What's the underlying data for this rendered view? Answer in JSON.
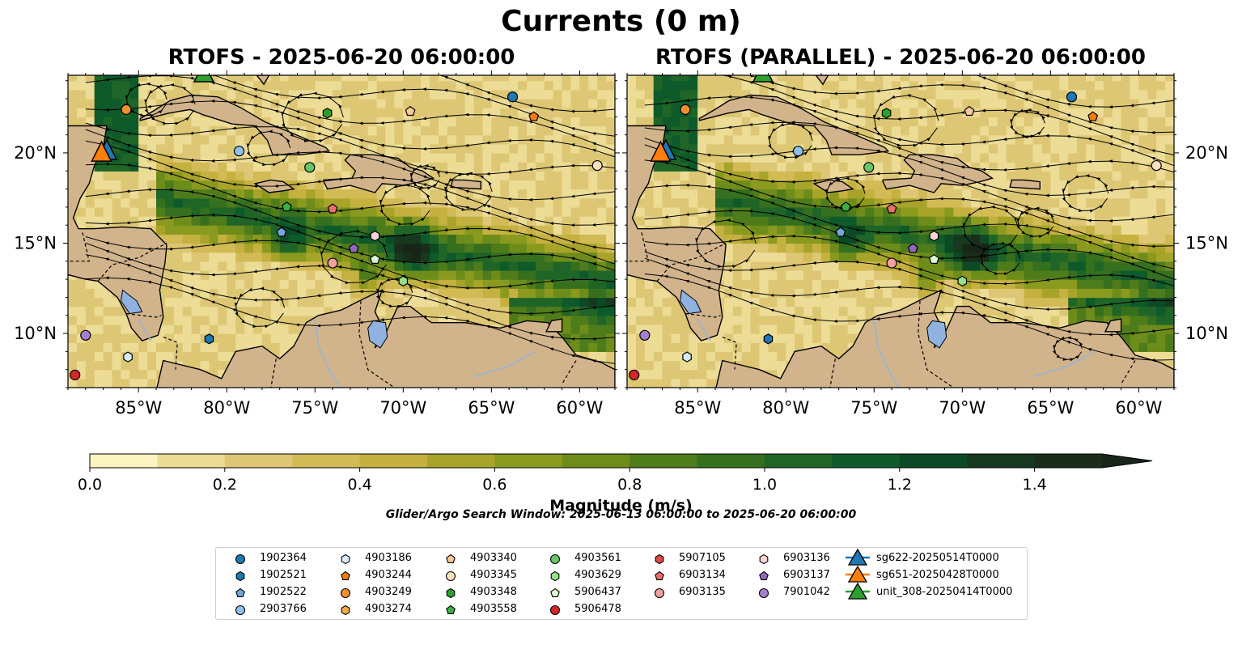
{
  "figure": {
    "suptitle": "Currents (0 m)",
    "panels": [
      {
        "title": "RTOFS - 2025-06-20 06:00:00"
      },
      {
        "title": "RTOFS (PARALLEL) - 2025-06-20 06:00:00"
      }
    ],
    "lat_ticks": [
      "20°N",
      "15°N",
      "10°N"
    ],
    "lon_ticks": [
      "85°W",
      "80°W",
      "75°W",
      "70°W",
      "65°W",
      "60°W"
    ],
    "extent": {
      "lon": [
        -89.0,
        -58.0
      ],
      "lat": [
        7.0,
        24.3
      ]
    }
  },
  "colorbar": {
    "label": "Magnitude (m/s)",
    "range": [
      0.0,
      1.5
    ],
    "extend": "max",
    "ticks": [
      "0.0",
      "0.2",
      "0.4",
      "0.6",
      "0.8",
      "1.0",
      "1.2",
      "1.4"
    ],
    "colors": [
      "#fbf3c0",
      "#ecdc96",
      "#ddc774",
      "#d2ba55",
      "#c4b140",
      "#a8a42a",
      "#8a9a1e",
      "#6e8c1a",
      "#4f7c1b",
      "#36701f",
      "#1f6527",
      "#0e5a2a",
      "#0b4a25",
      "#17391f",
      "#1c2c1b",
      "#18261a"
    ]
  },
  "search_window": "Glider/Argo Search Window: 2025-06-13 06:00:00 to 2025-06-20 06:00:00",
  "legend": {
    "columns": [
      [
        {
          "label": "1902364",
          "marker": "circle",
          "color": "#1f77b4"
        },
        {
          "label": "1902521",
          "marker": "hexagon",
          "color": "#1f77b4"
        },
        {
          "label": "1902522",
          "marker": "pentagon",
          "color": "#6fa8dc"
        },
        {
          "label": "2903766",
          "marker": "circle",
          "color": "#8fc1ea"
        }
      ],
      [
        {
          "label": "4903186",
          "marker": "hexagon",
          "color": "#d6ecfa"
        },
        {
          "label": "4903244",
          "marker": "pentagon",
          "color": "#f07d10"
        },
        {
          "label": "4903249",
          "marker": "circle",
          "color": "#f28f2e"
        },
        {
          "label": "4903274",
          "marker": "hexagon",
          "color": "#f6a84c"
        }
      ],
      [
        {
          "label": "4903340",
          "marker": "pentagon",
          "color": "#f8c89a"
        },
        {
          "label": "4903345",
          "marker": "circle",
          "color": "#fde0c0"
        },
        {
          "label": "4903348",
          "marker": "hexagon",
          "color": "#2ca02c"
        },
        {
          "label": "4903558",
          "marker": "pentagon",
          "color": "#3cb043"
        }
      ],
      [
        {
          "label": "4903561",
          "marker": "circle",
          "color": "#66c766"
        },
        {
          "label": "4903629",
          "marker": "hexagon",
          "color": "#98df8a"
        },
        {
          "label": "5906437",
          "marker": "pentagon",
          "color": "#dcf7d0"
        },
        {
          "label": "5906478",
          "marker": "circle",
          "color": "#d62728"
        }
      ],
      [
        {
          "label": "5907105",
          "marker": "hexagon",
          "color": "#e04848"
        },
        {
          "label": "6903134",
          "marker": "pentagon",
          "color": "#ec6f6f"
        },
        {
          "label": "6903135",
          "marker": "circle",
          "color": "#f4a0a0"
        }
      ],
      [
        {
          "label": "6903136",
          "marker": "hexagon",
          "color": "#fad4d4"
        },
        {
          "label": "6903137",
          "marker": "pentagon",
          "color": "#9467bd"
        },
        {
          "label": "7901042",
          "marker": "circle",
          "color": "#a47fcf"
        }
      ],
      [
        {
          "label": "sg622-20250514T0000",
          "marker": "triangle",
          "color": "#1f77b4"
        },
        {
          "label": "sg651-20250428T0000",
          "marker": "triangle",
          "color": "#ff7f0e"
        },
        {
          "label": "unit_308-20250414T0000",
          "marker": "triangle",
          "color": "#2ca02c"
        }
      ]
    ]
  },
  "colors": {
    "land": "#d2b48c",
    "lake": "#8fb2e0",
    "river": "#a0b4c8",
    "ocean_base": "#f3e3a0"
  }
}
